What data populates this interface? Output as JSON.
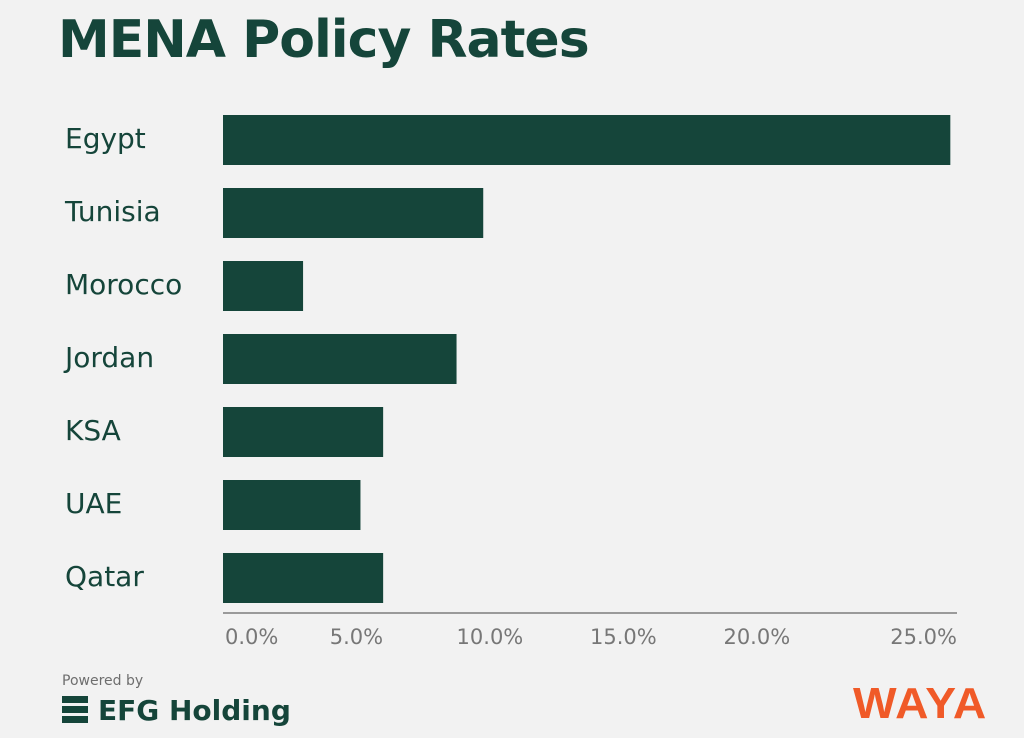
{
  "title": "MENA Policy Rates",
  "chart_data": {
    "type": "bar",
    "orientation": "horizontal",
    "title": "MENA Policy Rates",
    "categories": [
      "Egypt",
      "Tunisia",
      "Morocco",
      "Jordan",
      "KSA",
      "UAE",
      "Qatar"
    ],
    "values": [
      27.25,
      9.75,
      3.0,
      8.75,
      6.0,
      5.15,
      6.0
    ],
    "xlim": [
      0,
      27.5
    ],
    "xticks": [
      0,
      5,
      10,
      15,
      20,
      25
    ],
    "xtick_labels": [
      "0.0%",
      "5.0%",
      "10.0%",
      "15.0%",
      "20.0%",
      "25.0%"
    ],
    "xlabel": "",
    "ylabel": "",
    "grid": false,
    "bar_color": "#15453a"
  },
  "footer": {
    "powered_by": "Powered by",
    "efg_name": "EFG Holding",
    "waya": "WAYA"
  },
  "colors": {
    "primary": "#15453a",
    "accent": "#f05a28",
    "background": "#f2f2f2"
  }
}
